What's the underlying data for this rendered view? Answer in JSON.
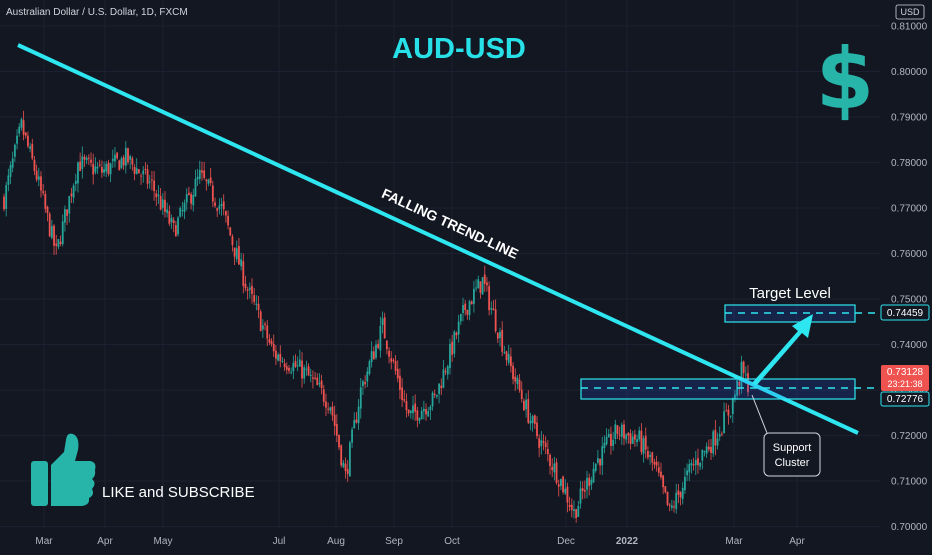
{
  "header": {
    "symbol_text": "Australian Dollar / U.S. Dollar, 1D, FXCM",
    "currency_badge": "USD"
  },
  "chart_data": {
    "type": "candlestick",
    "title": "AUD-USD",
    "y_axis": {
      "ticks": [
        "0.81000",
        "0.80000",
        "0.79000",
        "0.78000",
        "0.77000",
        "0.76000",
        "0.75000",
        "0.74000",
        "0.73000",
        "0.72000",
        "0.71000",
        "0.70000"
      ],
      "range": [
        0.6985,
        0.8125
      ]
    },
    "x_axis": {
      "ticks": [
        "Mar",
        "Apr",
        "May",
        "Jul",
        "Aug",
        "Sep",
        "Oct",
        "Dec",
        "2022",
        "Mar",
        "Apr"
      ]
    },
    "price_labels": {
      "target": "0.74459",
      "current": "0.73128",
      "countdown": "23:21:38",
      "support": "0.72776"
    },
    "colors": {
      "up": "#26a69a",
      "down": "#ef5350",
      "trendline": "#2ee6f0",
      "accent": "#27e0e8",
      "text": "#d1d4dc",
      "background": "#131722"
    },
    "annotations": {
      "trendline": "FALLING TREND-LINE",
      "target": "Target Level",
      "support_line1": "Support",
      "support_line2": "Cluster",
      "cta": "LIKE and SUBSCRIBE",
      "dollar_sign": "$"
    },
    "anchor_points": [
      {
        "t": 0,
        "p": 0.772
      },
      {
        "t": 8,
        "p": 0.788
      },
      {
        "t": 15,
        "p": 0.777
      },
      {
        "t": 24,
        "p": 0.76
      },
      {
        "t": 34,
        "p": 0.78
      },
      {
        "t": 45,
        "p": 0.778
      },
      {
        "t": 56,
        "p": 0.781
      },
      {
        "t": 68,
        "p": 0.775
      },
      {
        "t": 78,
        "p": 0.765
      },
      {
        "t": 90,
        "p": 0.777
      },
      {
        "t": 100,
        "p": 0.77
      },
      {
        "t": 112,
        "p": 0.752
      },
      {
        "t": 124,
        "p": 0.738
      },
      {
        "t": 138,
        "p": 0.734
      },
      {
        "t": 150,
        "p": 0.727
      },
      {
        "t": 157,
        "p": 0.711
      },
      {
        "t": 164,
        "p": 0.73
      },
      {
        "t": 174,
        "p": 0.744
      },
      {
        "t": 186,
        "p": 0.724
      },
      {
        "t": 198,
        "p": 0.728
      },
      {
        "t": 212,
        "p": 0.748
      },
      {
        "t": 220,
        "p": 0.754
      },
      {
        "t": 232,
        "p": 0.736
      },
      {
        "t": 244,
        "p": 0.721
      },
      {
        "t": 256,
        "p": 0.71
      },
      {
        "t": 262,
        "p": 0.703
      },
      {
        "t": 272,
        "p": 0.714
      },
      {
        "t": 282,
        "p": 0.721
      },
      {
        "t": 292,
        "p": 0.719
      },
      {
        "t": 300,
        "p": 0.712
      },
      {
        "t": 306,
        "p": 0.703
      },
      {
        "t": 316,
        "p": 0.713
      },
      {
        "t": 326,
        "p": 0.719
      },
      {
        "t": 334,
        "p": 0.726
      },
      {
        "t": 339,
        "p": 0.734
      },
      {
        "t": 342,
        "p": 0.7313
      }
    ]
  }
}
